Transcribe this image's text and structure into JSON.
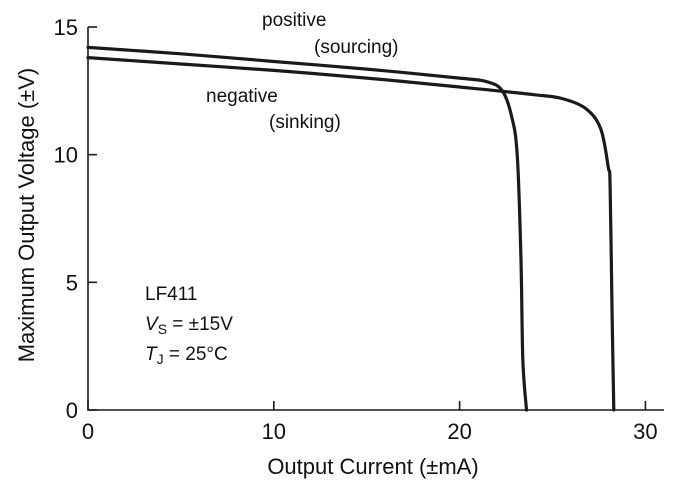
{
  "chart_data": {
    "type": "line",
    "title": "",
    "xlabel": "Output Current  (±mA)",
    "ylabel": "Maximum Output Voltage  (±V)",
    "xlim": [
      0,
      31
    ],
    "ylim": [
      0,
      15
    ],
    "x_ticks": [
      "0",
      "10",
      "20",
      "30"
    ],
    "y_ticks": [
      "0",
      "5",
      "10",
      "15"
    ],
    "grid": false,
    "series": [
      {
        "name": "positive (sourcing)",
        "x": [
          0,
          5,
          10,
          15,
          20,
          21.5,
          22.3,
          22.8,
          23.1,
          23.3,
          23.4,
          23.6
        ],
        "y": [
          14.2,
          13.95,
          13.65,
          13.35,
          13.0,
          12.85,
          12.5,
          11.5,
          10.0,
          6.0,
          2.0,
          0
        ]
      },
      {
        "name": "negative (sinking)",
        "x": [
          0,
          5,
          10,
          15,
          20,
          24,
          25.5,
          26.8,
          27.6,
          28.0,
          28.1,
          28.2,
          28.3
        ],
        "y": [
          13.8,
          13.55,
          13.3,
          13.0,
          12.65,
          12.35,
          12.2,
          11.8,
          11.0,
          9.5,
          8.8,
          4.0,
          0
        ]
      }
    ],
    "annotations": {
      "positive_line1": "positive",
      "positive_line2": "(sourcing)",
      "negative_line1": "negative",
      "negative_line2": "(sinking)"
    },
    "conditions": {
      "device": "LF411",
      "vs_var": "V",
      "vs_sub": "S",
      "vs_value": " = ±15V",
      "tj_var": "T",
      "tj_sub": "J",
      "tj_value": " = 25°C"
    }
  },
  "colors": {
    "curve": "#1a1a1a",
    "axis": "#1a1a1a",
    "text": "#111111"
  }
}
